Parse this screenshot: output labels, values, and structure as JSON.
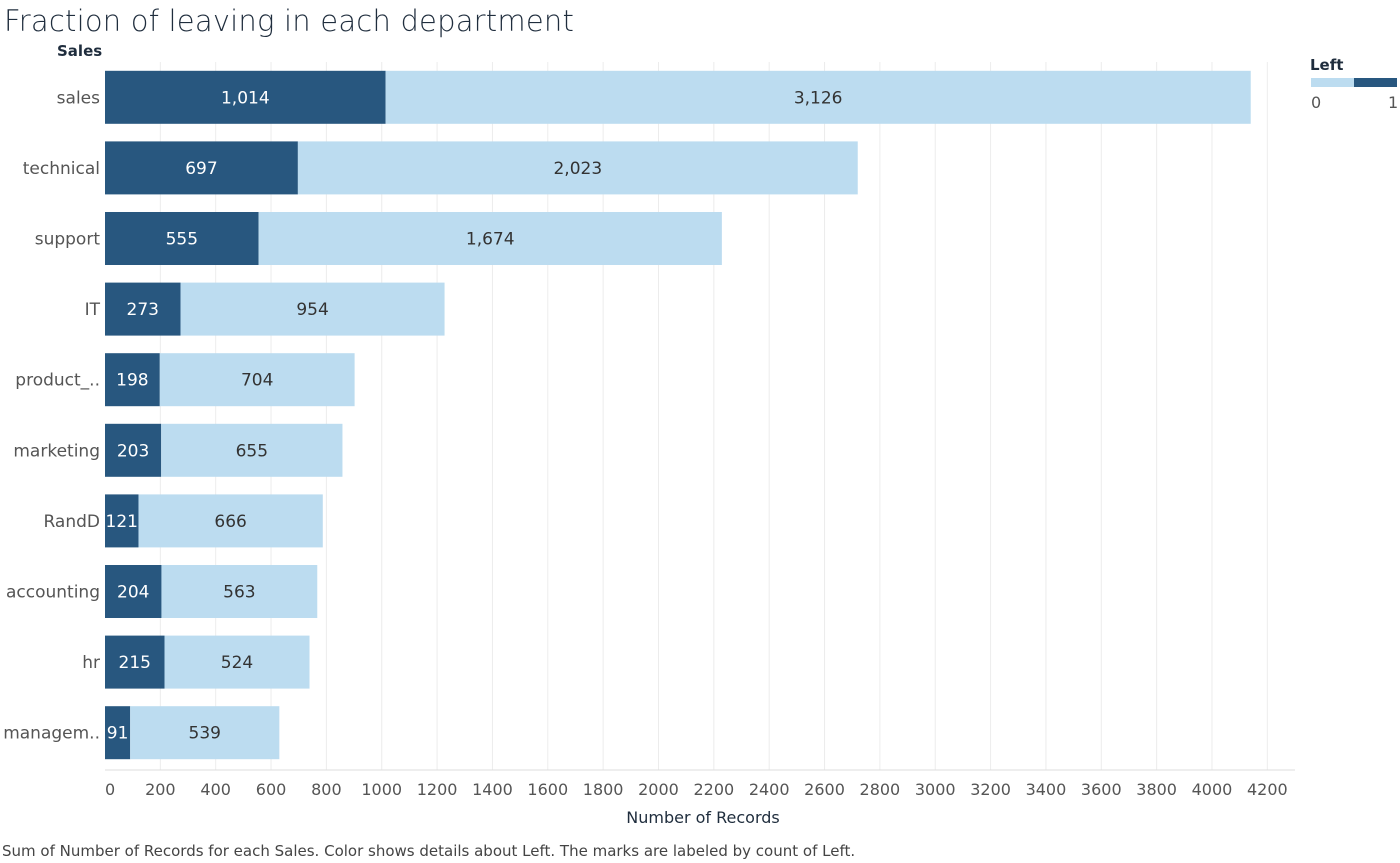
{
  "title": "Fraction of leaving in each department",
  "row_header": "Sales",
  "caption": "Sum of Number of Records for each Sales.  Color shows details about Left.  The marks are labeled by count of Left.",
  "legend": {
    "title": "Left",
    "min_label": "0",
    "max_label": "1"
  },
  "colors": {
    "left_1": "#28577f",
    "left_0": "#bcdcf0",
    "grid": "#ececec",
    "label_on_dark": "#ffffff",
    "label_on_light": "#333333"
  },
  "chart_data": {
    "type": "bar",
    "orientation": "horizontal",
    "stacked": true,
    "title": "Fraction of leaving in each department",
    "xlabel": "Number of Records",
    "ylabel": "Sales",
    "xlim": [
      0,
      4300
    ],
    "x_ticks": [
      0,
      200,
      400,
      600,
      800,
      1000,
      1200,
      1400,
      1600,
      1800,
      2000,
      2200,
      2400,
      2600,
      2800,
      3000,
      3200,
      3400,
      3600,
      3800,
      4000,
      4200
    ],
    "grid": true,
    "legend_position": "top-right",
    "categories": [
      "sales",
      "technical",
      "support",
      "IT",
      "product_..",
      "marketing",
      "RandD",
      "accounting",
      "hr",
      "managem.."
    ],
    "series": [
      {
        "name": "1",
        "color": "#28577f",
        "values": [
          1014,
          697,
          555,
          273,
          198,
          203,
          121,
          204,
          215,
          91
        ],
        "labels": [
          "1,014",
          "697",
          "555",
          "273",
          "198",
          "203",
          "121",
          "204",
          "215",
          "91"
        ]
      },
      {
        "name": "0",
        "color": "#bcdcf0",
        "values": [
          3126,
          2023,
          1674,
          954,
          704,
          655,
          666,
          563,
          524,
          539
        ],
        "labels": [
          "3,126",
          "2,023",
          "1,674",
          "954",
          "704",
          "655",
          "666",
          "563",
          "524",
          "539"
        ]
      }
    ]
  }
}
